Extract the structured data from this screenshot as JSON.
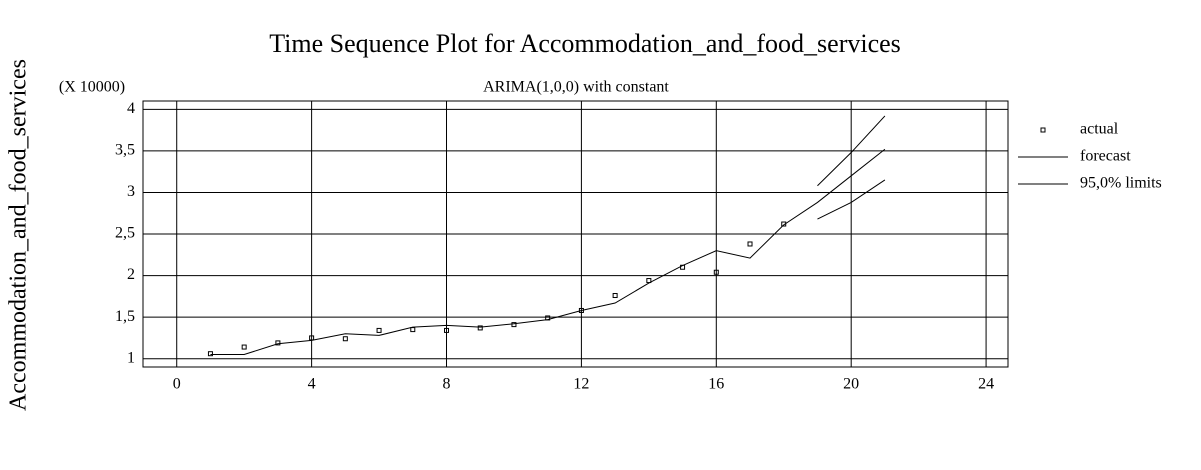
{
  "chart_data": {
    "type": "line",
    "title": "Time Sequence Plot for Accommodation_and_food_services",
    "subtitle": "ARIMA(1,0,0) with constant",
    "y_label": "Accommodation_and_food_services",
    "y_multiplier": "(X 10000)",
    "x": [
      1,
      2,
      3,
      4,
      5,
      6,
      7,
      8,
      9,
      10,
      11,
      12,
      13,
      14,
      15,
      16,
      17,
      18,
      19,
      20,
      21
    ],
    "series": [
      {
        "name": "actual",
        "color": "#000000",
        "marker": "square",
        "values": [
          1.06,
          1.14,
          1.19,
          1.25,
          1.24,
          1.34,
          1.35,
          1.34,
          1.37,
          1.41,
          1.49,
          1.58,
          1.76,
          1.94,
          2.1,
          2.04,
          2.38,
          2.62,
          null,
          null,
          null
        ]
      },
      {
        "name": "forecast",
        "color": "#000000",
        "values": [
          1.05,
          1.05,
          1.18,
          1.22,
          1.3,
          1.28,
          1.38,
          1.4,
          1.38,
          1.42,
          1.47,
          1.58,
          1.67,
          1.91,
          2.12,
          2.3,
          2.21,
          2.61,
          2.88,
          3.2,
          3.52
        ]
      },
      {
        "name": "95,0% limits",
        "color": "#000000",
        "upper": [
          null,
          null,
          null,
          null,
          null,
          null,
          null,
          null,
          null,
          null,
          null,
          null,
          null,
          null,
          null,
          null,
          null,
          null,
          3.08,
          3.48,
          3.92
        ],
        "lower": [
          null,
          null,
          null,
          null,
          null,
          null,
          null,
          null,
          null,
          null,
          null,
          null,
          null,
          null,
          null,
          null,
          null,
          null,
          2.68,
          2.88,
          3.15
        ]
      }
    ],
    "xlim": [
      -1,
      24.65
    ],
    "xticks": [
      0,
      4,
      8,
      12,
      16,
      20,
      24
    ],
    "ylim": [
      0.9,
      4.1
    ],
    "yticks": [
      1,
      {
        "value": 1.5,
        "label": "1,5"
      },
      2,
      {
        "value": 2.5,
        "label": "2,5"
      },
      3,
      {
        "value": 3.5,
        "label": "3,5"
      },
      4
    ],
    "grid": true,
    "legend": "right"
  }
}
